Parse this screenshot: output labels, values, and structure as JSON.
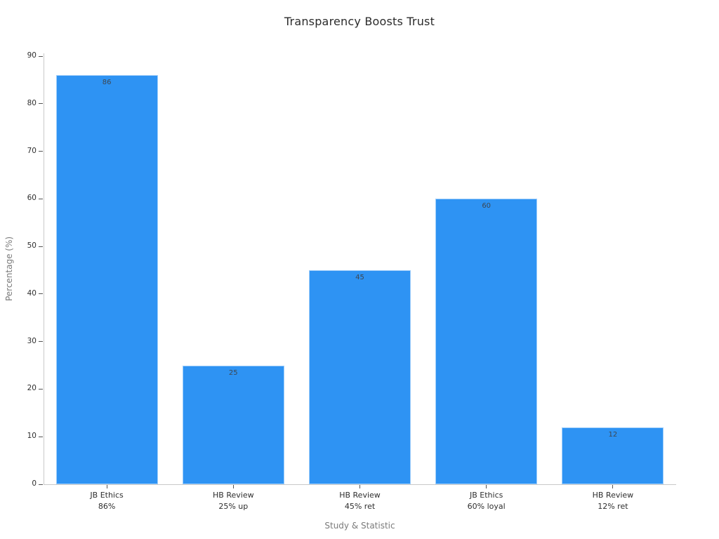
{
  "chart_data": {
    "type": "bar",
    "title": "Transparency Boosts Trust",
    "xlabel": "Study & Statistic",
    "ylabel": "Percentage (%)",
    "categories": [
      "JB Ethics\n86%",
      "HB Review\n25% up",
      "HB Review\n45% ret",
      "JB Ethics\n60% loyal",
      "HB Review\n12% ret"
    ],
    "values": [
      86,
      25,
      45,
      60,
      12
    ],
    "bar_labels": [
      "86",
      "25",
      "45",
      "60",
      "12"
    ],
    "yticks": [
      0,
      10,
      20,
      30,
      40,
      50,
      60,
      70,
      80,
      90
    ],
    "ylim": [
      0,
      90
    ],
    "grid": false,
    "legend_position": "none",
    "colors": {
      "bar": "#2e93f3",
      "axis_line": "#c9c9c9",
      "tick_mark": "#555555",
      "tick_label": "#2e2e2e",
      "axis_title": "#7b7b7b",
      "title": "#2b2b2b",
      "value_label": "#3d4752",
      "background": "#ffffff"
    }
  }
}
